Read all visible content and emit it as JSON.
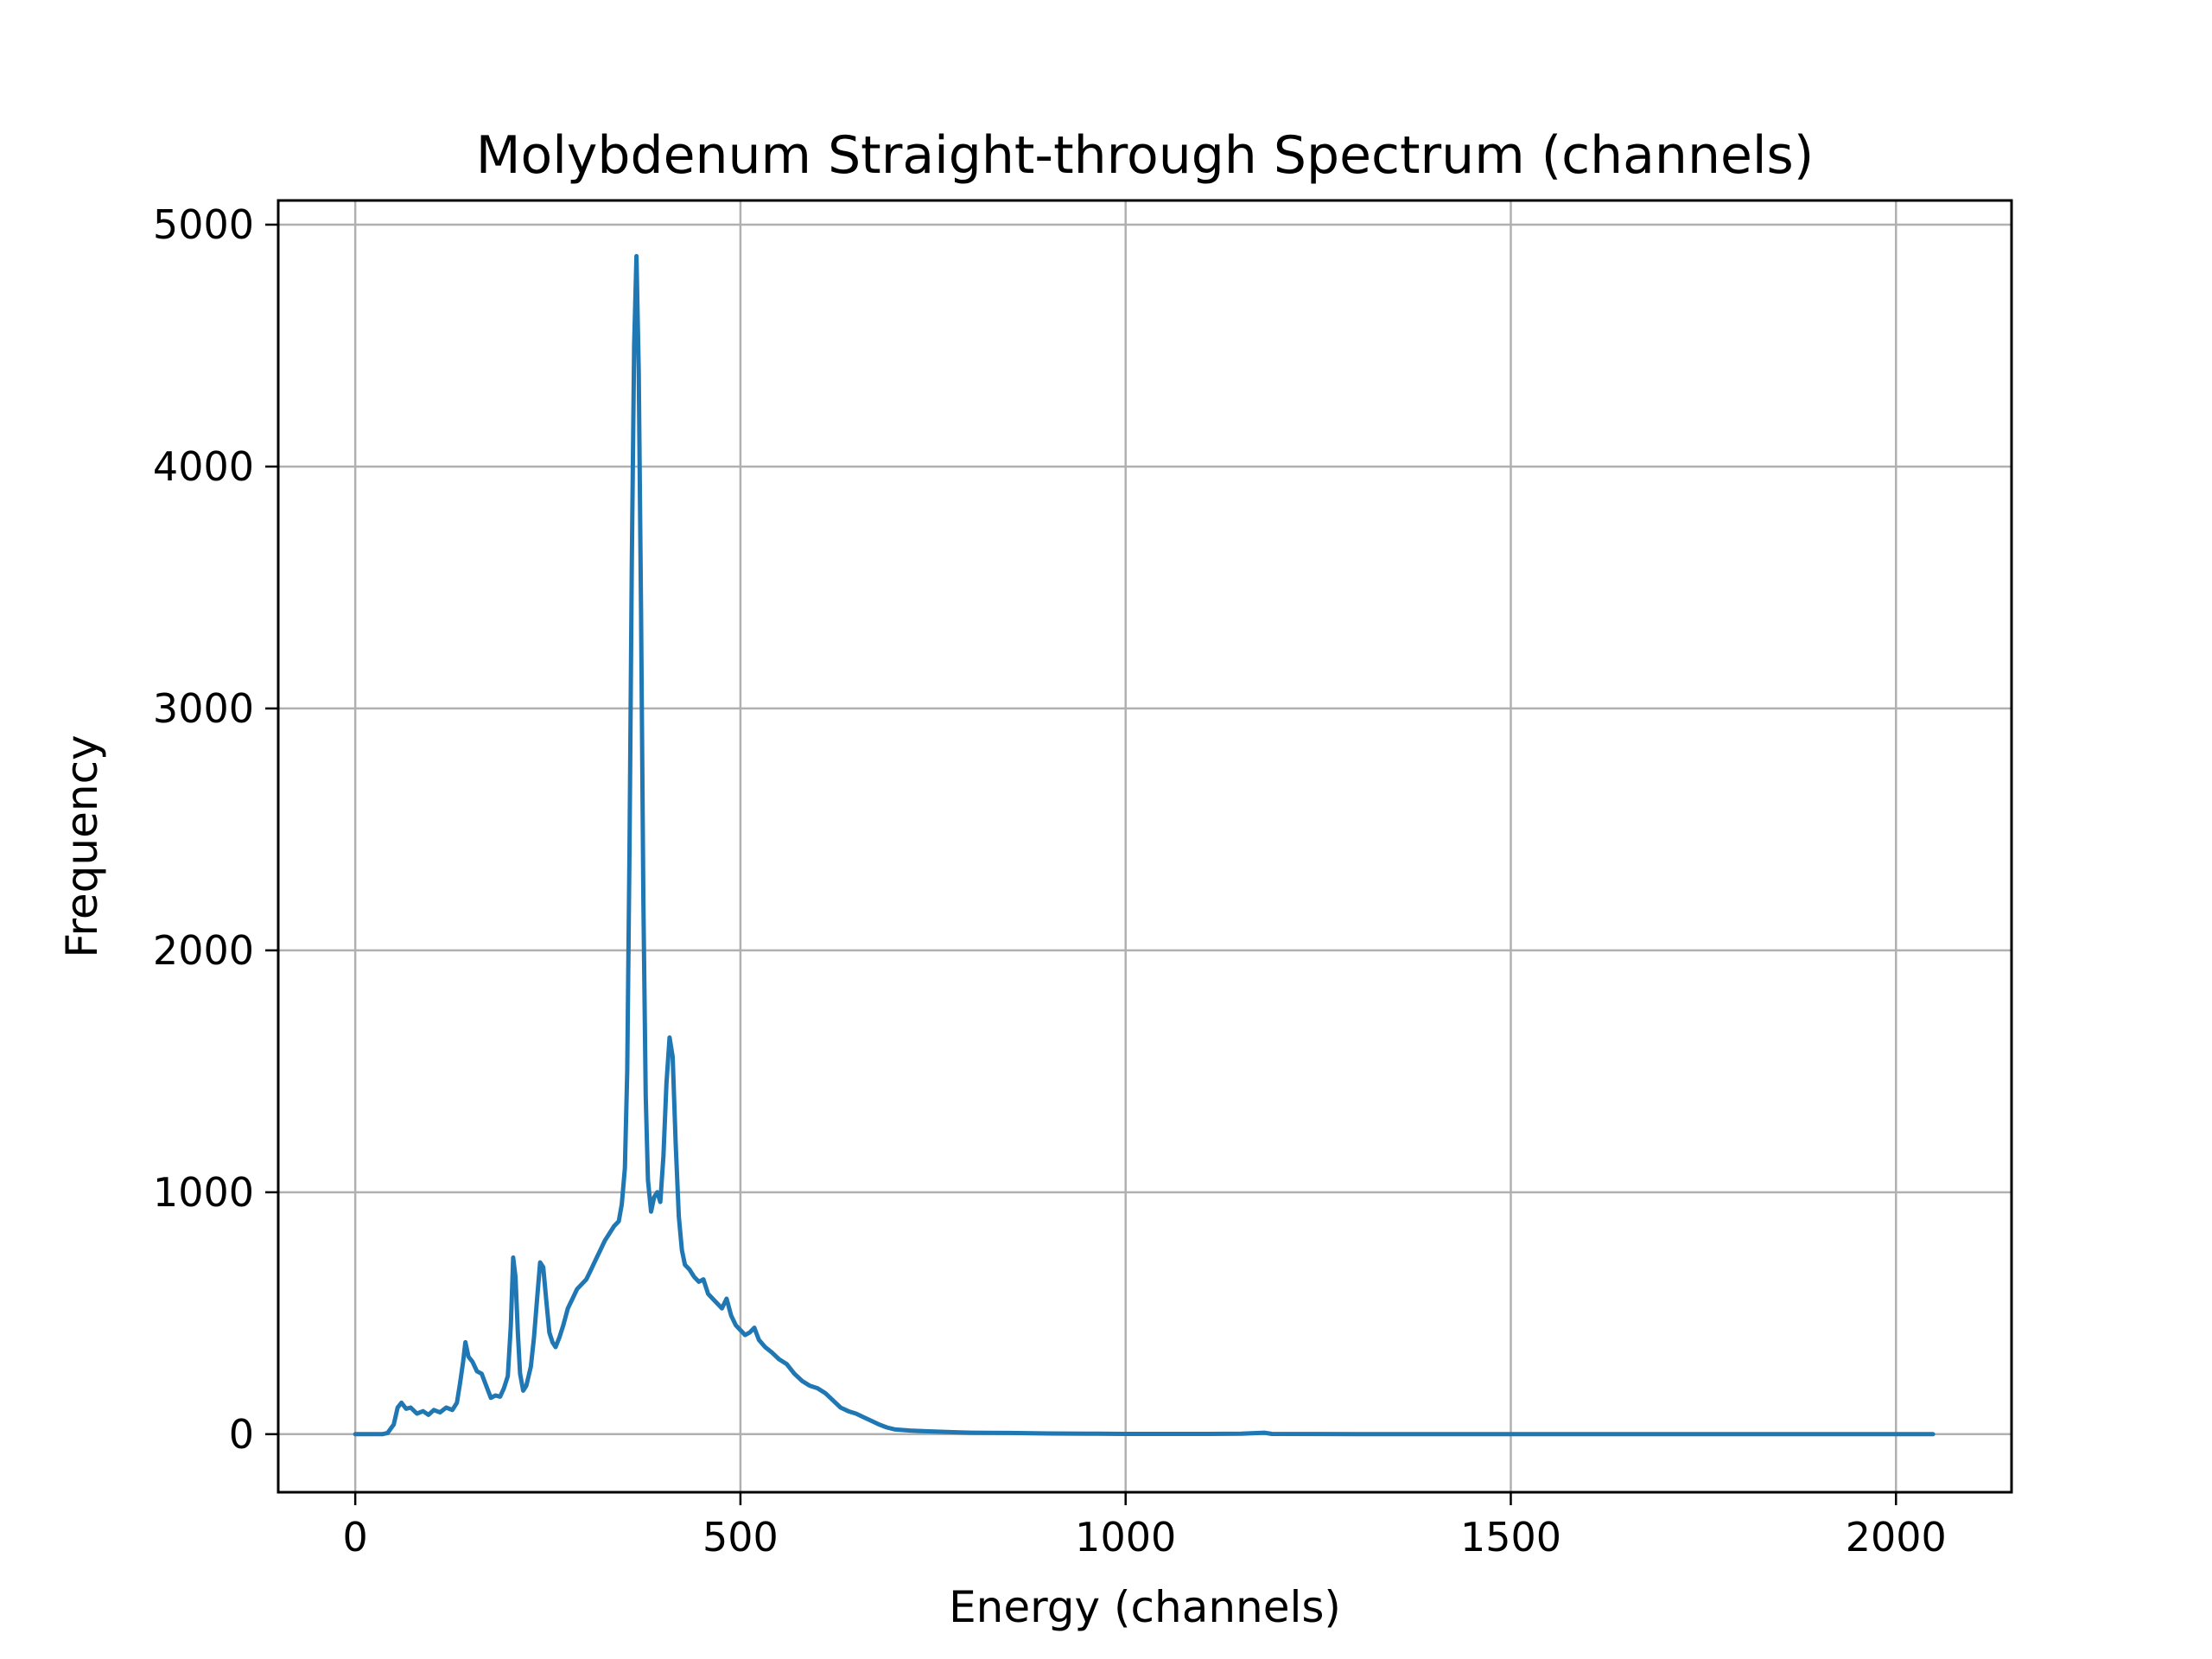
{
  "chart_data": {
    "type": "line",
    "title": "Molybdenum Straight-through Spectrum (channels)",
    "xlabel": "Energy (channels)",
    "ylabel": "Frequency",
    "xlim": [
      -100,
      2150
    ],
    "ylim": [
      -240,
      5100
    ],
    "x_ticks": [
      0,
      500,
      1000,
      1500,
      2000
    ],
    "y_ticks": [
      0,
      1000,
      2000,
      3000,
      4000,
      5000
    ],
    "grid": true,
    "series": [
      {
        "color": "#1f77b4",
        "points": [
          [
            0,
            0
          ],
          [
            35,
            0
          ],
          [
            42,
            5
          ],
          [
            50,
            40
          ],
          [
            55,
            110
          ],
          [
            60,
            130
          ],
          [
            66,
            105
          ],
          [
            72,
            110
          ],
          [
            80,
            85
          ],
          [
            88,
            95
          ],
          [
            95,
            80
          ],
          [
            102,
            100
          ],
          [
            110,
            90
          ],
          [
            118,
            110
          ],
          [
            126,
            100
          ],
          [
            132,
            130
          ],
          [
            136,
            210
          ],
          [
            140,
            300
          ],
          [
            143,
            380
          ],
          [
            147,
            320
          ],
          [
            152,
            300
          ],
          [
            158,
            260
          ],
          [
            164,
            250
          ],
          [
            170,
            200
          ],
          [
            176,
            150
          ],
          [
            182,
            160
          ],
          [
            188,
            155
          ],
          [
            193,
            190
          ],
          [
            198,
            240
          ],
          [
            202,
            450
          ],
          [
            205,
            730
          ],
          [
            208,
            650
          ],
          [
            211,
            420
          ],
          [
            214,
            250
          ],
          [
            218,
            180
          ],
          [
            222,
            200
          ],
          [
            228,
            280
          ],
          [
            232,
            400
          ],
          [
            236,
            560
          ],
          [
            240,
            710
          ],
          [
            244,
            690
          ],
          [
            248,
            550
          ],
          [
            252,
            420
          ],
          [
            256,
            380
          ],
          [
            260,
            360
          ],
          [
            265,
            400
          ],
          [
            270,
            450
          ],
          [
            276,
            520
          ],
          [
            282,
            560
          ],
          [
            288,
            600
          ],
          [
            294,
            620
          ],
          [
            300,
            640
          ],
          [
            306,
            680
          ],
          [
            312,
            720
          ],
          [
            318,
            760
          ],
          [
            324,
            800
          ],
          [
            330,
            830
          ],
          [
            336,
            860
          ],
          [
            342,
            880
          ],
          [
            346,
            950
          ],
          [
            350,
            1100
          ],
          [
            353,
            1500
          ],
          [
            356,
            2400
          ],
          [
            359,
            3600
          ],
          [
            362,
            4500
          ],
          [
            365,
            4870
          ],
          [
            368,
            4400
          ],
          [
            371,
            3400
          ],
          [
            374,
            2200
          ],
          [
            377,
            1400
          ],
          [
            380,
            1050
          ],
          [
            384,
            920
          ],
          [
            388,
            980
          ],
          [
            392,
            1000
          ],
          [
            396,
            960
          ],
          [
            400,
            1150
          ],
          [
            404,
            1450
          ],
          [
            408,
            1640
          ],
          [
            412,
            1560
          ],
          [
            416,
            1200
          ],
          [
            420,
            900
          ],
          [
            424,
            760
          ],
          [
            428,
            700
          ],
          [
            434,
            680
          ],
          [
            440,
            650
          ],
          [
            446,
            630
          ],
          [
            452,
            640
          ],
          [
            458,
            580
          ],
          [
            464,
            560
          ],
          [
            470,
            540
          ],
          [
            476,
            520
          ],
          [
            482,
            560
          ],
          [
            488,
            490
          ],
          [
            494,
            450
          ],
          [
            500,
            430
          ],
          [
            506,
            410
          ],
          [
            512,
            420
          ],
          [
            518,
            440
          ],
          [
            524,
            390
          ],
          [
            532,
            360
          ],
          [
            540,
            340
          ],
          [
            550,
            310
          ],
          [
            560,
            290
          ],
          [
            570,
            250
          ],
          [
            580,
            220
          ],
          [
            590,
            200
          ],
          [
            600,
            190
          ],
          [
            610,
            170
          ],
          [
            620,
            140
          ],
          [
            630,
            110
          ],
          [
            640,
            95
          ],
          [
            650,
            85
          ],
          [
            660,
            70
          ],
          [
            670,
            55
          ],
          [
            680,
            40
          ],
          [
            690,
            28
          ],
          [
            700,
            20
          ],
          [
            720,
            15
          ],
          [
            740,
            12
          ],
          [
            760,
            10
          ],
          [
            780,
            8
          ],
          [
            800,
            6
          ],
          [
            850,
            5
          ],
          [
            900,
            3
          ],
          [
            950,
            2
          ],
          [
            1000,
            1
          ],
          [
            1100,
            1
          ],
          [
            1150,
            2
          ],
          [
            1180,
            6
          ],
          [
            1190,
            1
          ],
          [
            1300,
            0
          ],
          [
            1500,
            0
          ],
          [
            1800,
            0
          ],
          [
            2048,
            0
          ]
        ]
      }
    ]
  }
}
